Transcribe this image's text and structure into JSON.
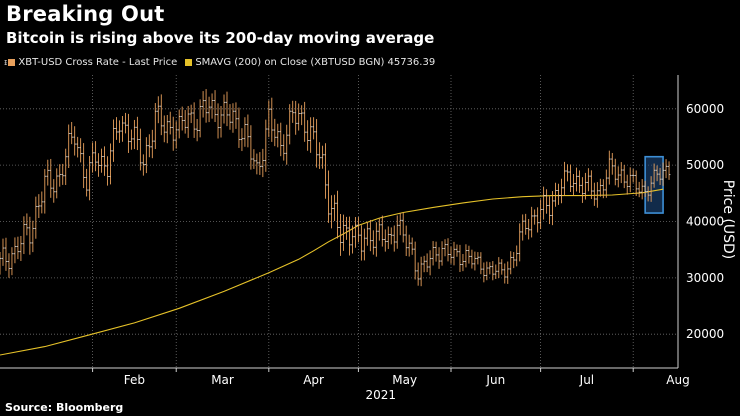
{
  "header": {
    "title": "Breaking Out",
    "subtitle": "Bitcoin is rising above its 200-day moving average"
  },
  "legend": {
    "series1": "XBT-USD Cross Rate - Last Price",
    "series2": "SMAVG (200)  on Close (XBTUSD BGN)",
    "series2_value": "45736.39"
  },
  "colors": {
    "price": "#e8a05c",
    "sma": "#e6c229",
    "highlight_stroke": "#3d8fd6",
    "highlight_fill": "#1f4e86",
    "grid": "#6e6e6e"
  },
  "footer": {
    "source": "Source: Bloomberg"
  },
  "chart_data": {
    "type": "line",
    "title": "Breaking Out",
    "subtitle": "Bitcoin is rising above its 200-day moving average",
    "xlabel": "2021",
    "ylabel": "Price (USD)",
    "ylim": [
      14000,
      66000
    ],
    "yticks": [
      20000,
      30000,
      40000,
      50000,
      60000
    ],
    "ytick_labels": [
      "20000",
      "30000",
      "40000",
      "50000",
      "60000"
    ],
    "xlim": [
      0,
      227
    ],
    "xticks": [
      31,
      59,
      90,
      120,
      151,
      181,
      212
    ],
    "xtick_labels": [
      "Feb",
      "Mar",
      "Apr",
      "May",
      "Jun",
      "Jul",
      "Aug"
    ],
    "year_label": "2021",
    "highlight_x": [
      216,
      222
    ],
    "highlight_y": [
      41500,
      51500
    ],
    "series": [
      {
        "name": "XBT-USD Cross Rate - Last Price",
        "type": "ohlc",
        "x": [
          0,
          5,
          10,
          15,
          20,
          25,
          29,
          32,
          36,
          40,
          44,
          48,
          52,
          56,
          60,
          63,
          66,
          70,
          74,
          78,
          82,
          86,
          90,
          94,
          98,
          102,
          105,
          108,
          111,
          114,
          118,
          121,
          124,
          127,
          130,
          133,
          136,
          140,
          144,
          148,
          152,
          156,
          160,
          164,
          168,
          172,
          176,
          180,
          184,
          188,
          192,
          196,
          200,
          204,
          208,
          212,
          216,
          220,
          224
        ],
        "close": [
          32500,
          34800,
          38500,
          46300,
          48000,
          56000,
          46500,
          52000,
          49600,
          58000,
          55300,
          50800,
          58000,
          57000,
          56200,
          59000,
          57700,
          61000,
          58500,
          58800,
          55000,
          49200,
          57500,
          53600,
          58500,
          58000,
          54000,
          49800,
          42500,
          37000,
          39000,
          35500,
          37800,
          38000,
          35800,
          40300,
          36000,
          31500,
          33000,
          35500,
          33500,
          34200,
          32200,
          31500,
          30900,
          33600,
          39800,
          41200,
          43000,
          46700,
          47800,
          46000,
          45200,
          49000,
          48500,
          46500,
          45500,
          48000,
          49800
        ],
        "spread": [
          3200,
          2800,
          3500,
          3500,
          3200,
          3500,
          3000,
          3500,
          3000,
          3500,
          3300,
          3300,
          3600,
          3400,
          3000,
          3200,
          3200,
          3500,
          3300,
          3300,
          3400,
          3400,
          3600,
          3300,
          3500,
          3500,
          3800,
          4000,
          4400,
          4000,
          3400,
          3000,
          3100,
          3000,
          3000,
          3000,
          2800,
          2500,
          2500,
          2300,
          2400,
          2200,
          2000,
          2000,
          2000,
          2400,
          2800,
          3000,
          3000,
          2800,
          2800,
          2800,
          2600,
          2600,
          2600,
          2300,
          2100,
          2100,
          2500
        ]
      },
      {
        "name": "SMAVG (200)  on Close (XBTUSD BGN)",
        "type": "line",
        "x": [
          0,
          15,
          30,
          45,
          60,
          75,
          90,
          100,
          105,
          110,
          115,
          120,
          127,
          135,
          145,
          155,
          165,
          175,
          185,
          195,
          205,
          215,
          222
        ],
        "y": [
          16300,
          17800,
          19900,
          22000,
          24600,
          27600,
          30900,
          33300,
          34800,
          36400,
          37800,
          39300,
          40600,
          41600,
          42500,
          43300,
          44000,
          44400,
          44600,
          44600,
          44700,
          45100,
          45736.39
        ],
        "last_value": 45736.39
      }
    ]
  }
}
